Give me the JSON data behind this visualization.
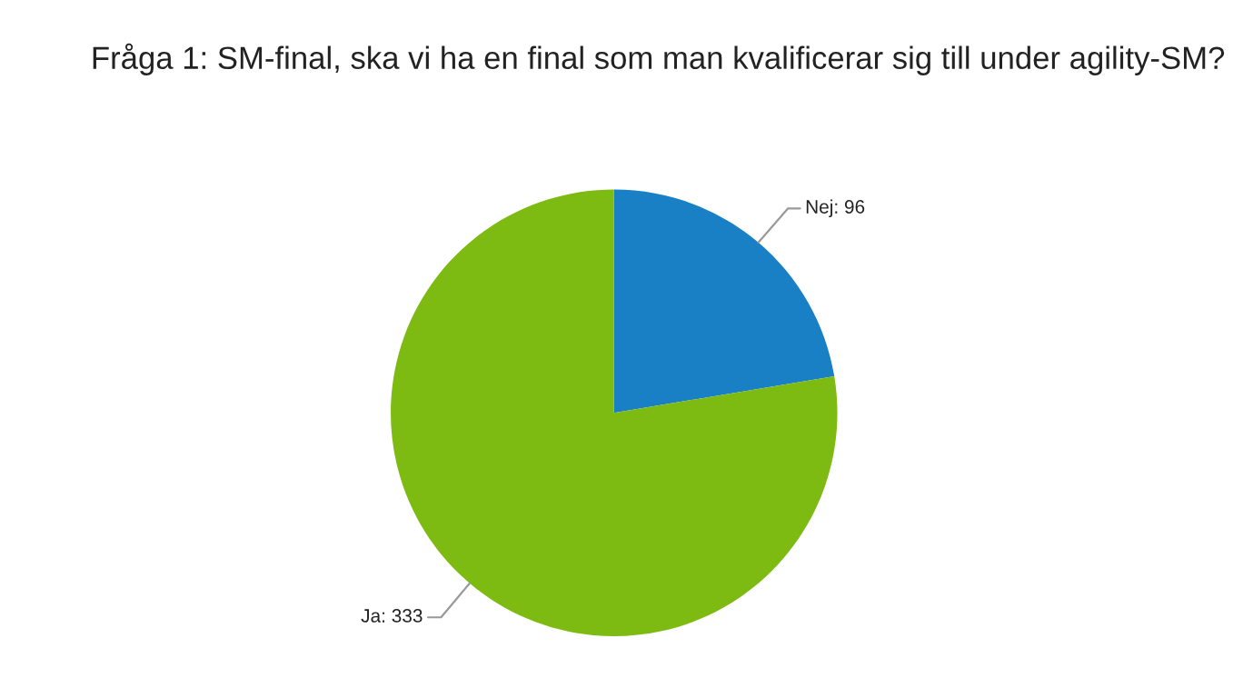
{
  "chart_data": {
    "type": "pie",
    "title": "Fråga 1: SM-final, ska vi ha en final som man kvalificerar sig till under agility-SM?",
    "categories": [
      "Nej: 96",
      "Ja: 333"
    ],
    "values": [
      96,
      333
    ],
    "colors": [
      "#1a80c6",
      "#7dbb12"
    ],
    "legend": false
  }
}
